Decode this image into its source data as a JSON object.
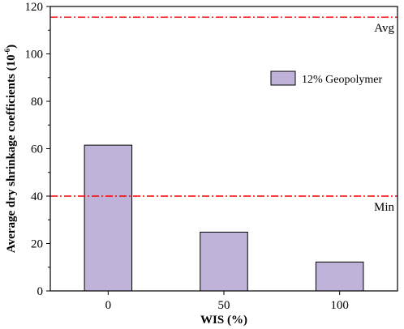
{
  "chart_data": {
    "type": "bar",
    "categories": [
      "0",
      "50",
      "100"
    ],
    "series": [
      {
        "name": "12% Geopolymer",
        "values": [
          61.5,
          24.8,
          12.2
        ],
        "color": "#c0b3d9"
      }
    ],
    "xlabel": "WIS (%)",
    "ylabel_main": "Average dry shrinkage coefficients (10",
    "ylabel_sup": "-6",
    "ylabel_end": ")",
    "ylim": [
      0,
      120
    ],
    "yticks": [
      "0",
      "20",
      "40",
      "60",
      "80",
      "100",
      "120"
    ],
    "reference_lines": [
      {
        "label": "Avg",
        "value": 115.5,
        "color": "#ff0000"
      },
      {
        "label": "Min",
        "value": 40,
        "color": "#ff0000"
      }
    ],
    "grid": false,
    "legend_position": "top-right"
  }
}
